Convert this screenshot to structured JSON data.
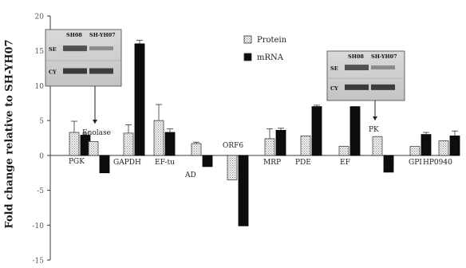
{
  "chart_data": {
    "type": "bar",
    "ylabel": "Fold change relative to SH-YH07",
    "ylim": [
      -15,
      20
    ],
    "yticks": [
      -15,
      -10,
      -5,
      0,
      5,
      10,
      15,
      20
    ],
    "grid": false,
    "legend_position": "top-center",
    "categories": [
      "PGK",
      "Enolase",
      "GAPDH",
      "EF-tu",
      "AD",
      "ORF6",
      "MRP",
      "PDE",
      "EF",
      "PK",
      "GPI",
      "HP0940"
    ],
    "series": [
      {
        "name": "Protein",
        "values": [
          3.3,
          2.0,
          3.2,
          5.0,
          1.7,
          -3.5,
          2.4,
          2.8,
          1.3,
          2.7,
          1.3,
          2.1
        ],
        "errors": [
          1.6,
          0,
          1.2,
          2.3,
          0.2,
          0,
          1.4,
          0,
          0,
          0,
          0,
          0
        ]
      },
      {
        "name": "mRNA",
        "values": [
          2.9,
          -2.5,
          16.0,
          3.3,
          -1.6,
          -10.1,
          3.6,
          7.0,
          7.0,
          -2.4,
          3.0,
          2.8
        ],
        "errors": [
          0.3,
          0,
          0.5,
          0.5,
          0,
          0,
          0.3,
          0.2,
          0,
          0,
          0.3,
          0.7
        ]
      }
    ],
    "inset_blots": [
      {
        "label": "Enolase",
        "lanes": [
          "SH08",
          "SH-YH07"
        ],
        "rows": [
          "SE",
          "CY"
        ]
      },
      {
        "label": "PK",
        "lanes": [
          "SH08",
          "SH-YH07"
        ],
        "rows": [
          "SE",
          "CY"
        ]
      }
    ]
  }
}
